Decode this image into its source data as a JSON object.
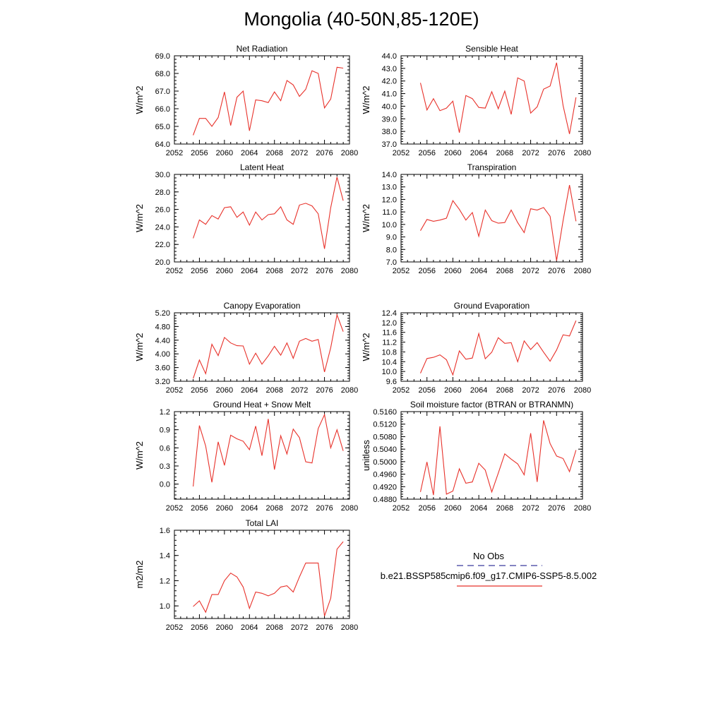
{
  "page": {
    "title": "Mongolia (40-50N,85-120E)"
  },
  "legend": {
    "obs_label": "No Obs",
    "obs_color": "#3b3b9e",
    "model_label": "b.e21.BSSP585cmip6.f09_g17.CMIP6-SSP5-8.5.002",
    "model_color": "#e8322b"
  },
  "chart_data": [
    {
      "type": "line",
      "title": "Net Radiation",
      "ylabel": "W/m^2",
      "xlim": [
        2052,
        2080
      ],
      "ylim": [
        64.0,
        69.0
      ],
      "xticks": [
        "2052",
        "2056",
        "2060",
        "2064",
        "2068",
        "2072",
        "2076",
        "2080"
      ],
      "yticks": [
        "64.0",
        "65.0",
        "66.0",
        "67.0",
        "68.0",
        "69.0"
      ],
      "x": [
        2055,
        2056,
        2057,
        2058,
        2059,
        2060,
        2061,
        2062,
        2063,
        2064,
        2065,
        2066,
        2067,
        2068,
        2069,
        2070,
        2071,
        2072,
        2073,
        2074,
        2075,
        2076,
        2077,
        2078,
        2079
      ],
      "series": [
        {
          "values": [
            64.5,
            65.45,
            65.45,
            65.0,
            65.5,
            66.95,
            65.05,
            66.65,
            67.0,
            64.75,
            66.5,
            66.45,
            66.35,
            66.95,
            66.45,
            67.6,
            67.35,
            66.7,
            67.1,
            68.15,
            68.0,
            66.05,
            66.55,
            68.35,
            68.3
          ]
        }
      ]
    },
    {
      "type": "line",
      "title": "Sensible Heat",
      "ylabel": "W/m^2",
      "xlim": [
        2052,
        2080
      ],
      "ylim": [
        37.0,
        44.0
      ],
      "xticks": [
        "2052",
        "2056",
        "2060",
        "2064",
        "2068",
        "2072",
        "2076",
        "2080"
      ],
      "yticks": [
        "37.0",
        "38.0",
        "39.0",
        "40.0",
        "41.0",
        "42.0",
        "43.0",
        "44.0"
      ],
      "x": [
        2055,
        2056,
        2057,
        2058,
        2059,
        2060,
        2061,
        2062,
        2063,
        2064,
        2065,
        2066,
        2067,
        2068,
        2069,
        2070,
        2071,
        2072,
        2073,
        2074,
        2075,
        2076,
        2077,
        2078,
        2079
      ],
      "series": [
        {
          "values": [
            41.85,
            39.7,
            40.6,
            39.65,
            39.85,
            40.4,
            37.9,
            40.85,
            40.6,
            39.9,
            39.85,
            41.15,
            39.8,
            41.2,
            39.35,
            42.25,
            42.0,
            39.45,
            39.95,
            41.35,
            41.6,
            43.45,
            40.05,
            37.8,
            40.7
          ]
        }
      ]
    },
    {
      "type": "line",
      "title": "Latent Heat",
      "ylabel": "W/m^2",
      "xlim": [
        2052,
        2080
      ],
      "ylim": [
        20.0,
        30.0
      ],
      "xticks": [
        "2052",
        "2056",
        "2060",
        "2064",
        "2068",
        "2072",
        "2076",
        "2080"
      ],
      "yticks": [
        "20.0",
        "22.0",
        "24.0",
        "26.0",
        "28.0",
        "30.0"
      ],
      "x": [
        2055,
        2056,
        2057,
        2058,
        2059,
        2060,
        2061,
        2062,
        2063,
        2064,
        2065,
        2066,
        2067,
        2068,
        2069,
        2070,
        2071,
        2072,
        2073,
        2074,
        2075,
        2076,
        2077,
        2078,
        2079
      ],
      "series": [
        {
          "values": [
            22.7,
            24.8,
            24.3,
            25.3,
            24.9,
            26.2,
            26.3,
            25.1,
            25.7,
            24.2,
            25.7,
            24.8,
            25.4,
            25.5,
            26.3,
            24.8,
            24.3,
            26.5,
            26.7,
            26.4,
            25.5,
            21.5,
            26.2,
            29.7,
            27.0
          ]
        }
      ]
    },
    {
      "type": "line",
      "title": "Transpiration",
      "ylabel": "W/m^2",
      "xlim": [
        2052,
        2080
      ],
      "ylim": [
        7.0,
        14.0
      ],
      "xticks": [
        "2052",
        "2056",
        "2060",
        "2064",
        "2068",
        "2072",
        "2076",
        "2080"
      ],
      "yticks": [
        "7.0",
        "8.0",
        "9.0",
        "10.0",
        "11.0",
        "12.0",
        "13.0",
        "14.0"
      ],
      "x": [
        2055,
        2056,
        2057,
        2058,
        2059,
        2060,
        2061,
        2062,
        2063,
        2064,
        2065,
        2066,
        2067,
        2068,
        2069,
        2070,
        2071,
        2072,
        2073,
        2074,
        2075,
        2076,
        2077,
        2078,
        2079
      ],
      "series": [
        {
          "values": [
            9.5,
            10.4,
            10.25,
            10.35,
            10.5,
            11.9,
            11.2,
            10.35,
            10.95,
            9.05,
            11.15,
            10.3,
            10.1,
            10.15,
            11.15,
            10.15,
            9.35,
            11.25,
            11.15,
            11.35,
            10.65,
            7.1,
            10.3,
            13.15,
            10.25
          ]
        }
      ]
    },
    {
      "type": "line",
      "title": "Canopy Evaporation",
      "ylabel": "W/m^2",
      "xlim": [
        2052,
        2080
      ],
      "ylim": [
        3.2,
        5.2
      ],
      "xticks": [
        "2052",
        "2056",
        "2060",
        "2064",
        "2068",
        "2072",
        "2076",
        "2080"
      ],
      "yticks": [
        "3.20",
        "3.60",
        "4.00",
        "4.40",
        "4.80",
        "5.20"
      ],
      "x": [
        2055,
        2056,
        2057,
        2058,
        2059,
        2060,
        2061,
        2062,
        2063,
        2064,
        2065,
        2066,
        2067,
        2068,
        2069,
        2070,
        2071,
        2072,
        2073,
        2074,
        2075,
        2076,
        2077,
        2078,
        2079
      ],
      "series": [
        {
          "values": [
            3.28,
            3.82,
            3.42,
            4.28,
            3.95,
            4.48,
            4.32,
            4.24,
            4.23,
            3.7,
            4.02,
            3.7,
            3.94,
            4.22,
            3.96,
            4.32,
            3.87,
            4.37,
            4.45,
            4.37,
            4.42,
            3.47,
            4.18,
            5.14,
            4.65
          ]
        }
      ]
    },
    {
      "type": "line",
      "title": "Ground Evaporation",
      "ylabel": "W/m^2",
      "xlim": [
        2052,
        2080
      ],
      "ylim": [
        9.6,
        12.4
      ],
      "xticks": [
        "2052",
        "2056",
        "2060",
        "2064",
        "2068",
        "2072",
        "2076",
        "2080"
      ],
      "yticks": [
        "9.6",
        "10.0",
        "10.4",
        "10.8",
        "11.2",
        "11.6",
        "12.0",
        "12.4"
      ],
      "x": [
        2055,
        2056,
        2057,
        2058,
        2059,
        2060,
        2061,
        2062,
        2063,
        2064,
        2065,
        2066,
        2067,
        2068,
        2069,
        2070,
        2071,
        2072,
        2073,
        2074,
        2075,
        2076,
        2077,
        2078,
        2079
      ],
      "series": [
        {
          "values": [
            9.93,
            10.53,
            10.58,
            10.68,
            10.48,
            9.86,
            10.84,
            10.5,
            10.55,
            11.55,
            10.52,
            10.79,
            11.38,
            11.15,
            11.18,
            10.4,
            11.25,
            10.9,
            11.18,
            10.79,
            10.42,
            10.88,
            11.5,
            11.45,
            12.08
          ]
        }
      ]
    },
    {
      "type": "line",
      "title": "Ground Heat + Snow Melt",
      "ylabel": "W/m^2",
      "xlim": [
        2052,
        2080
      ],
      "ylim": [
        -0.25,
        1.2
      ],
      "xticks": [
        "2052",
        "2056",
        "2060",
        "2064",
        "2068",
        "2072",
        "2076",
        "2080"
      ],
      "yticks": [
        "0.0",
        "0.3",
        "0.6",
        "0.9",
        "1.2"
      ],
      "ytickvals": [
        0.0,
        0.3,
        0.6,
        0.9,
        1.2
      ],
      "x": [
        2055,
        2056,
        2057,
        2058,
        2059,
        2060,
        2061,
        2062,
        2063,
        2064,
        2065,
        2066,
        2067,
        2068,
        2069,
        2070,
        2071,
        2072,
        2073,
        2074,
        2075,
        2076,
        2077,
        2078,
        2079
      ],
      "series": [
        {
          "values": [
            -0.04,
            0.97,
            0.63,
            0.03,
            0.7,
            0.31,
            0.81,
            0.75,
            0.71,
            0.57,
            0.96,
            0.47,
            1.08,
            0.24,
            0.8,
            0.5,
            0.91,
            0.77,
            0.37,
            0.35,
            0.92,
            1.15,
            0.6,
            0.9,
            0.55
          ]
        }
      ]
    },
    {
      "type": "line",
      "title": "Soil moisture factor (BTRAN or BTRANMN)",
      "ylabel": "unitless",
      "xlim": [
        2052,
        2080
      ],
      "ylim": [
        0.488,
        0.516
      ],
      "xticks": [
        "2052",
        "2056",
        "2060",
        "2064",
        "2068",
        "2072",
        "2076",
        "2080"
      ],
      "yticks": [
        "0.4880",
        "0.4920",
        "0.4960",
        "0.5000",
        "0.5040",
        "0.5080",
        "0.5120",
        "0.5160"
      ],
      "x": [
        2055,
        2056,
        2057,
        2058,
        2059,
        2060,
        2061,
        2062,
        2063,
        2064,
        2065,
        2066,
        2067,
        2068,
        2069,
        2070,
        2071,
        2072,
        2073,
        2074,
        2075,
        2076,
        2077,
        2078,
        2079
      ],
      "series": [
        {
          "values": [
            0.4903,
            0.4999,
            0.4893,
            0.5113,
            0.4896,
            0.4906,
            0.4977,
            0.4931,
            0.4935,
            0.4995,
            0.4973,
            0.4903,
            0.4963,
            0.5025,
            0.5008,
            0.4993,
            0.4958,
            0.5091,
            0.4935,
            0.5132,
            0.5058,
            0.5018,
            0.501,
            0.4968,
            0.5037
          ]
        }
      ]
    },
    {
      "type": "line",
      "title": "Total LAI",
      "ylabel": "m2/m2",
      "xlim": [
        2052,
        2080
      ],
      "ylim": [
        0.9,
        1.6
      ],
      "xticks": [
        "2052",
        "2056",
        "2060",
        "2064",
        "2068",
        "2072",
        "2076",
        "2080"
      ],
      "yticks": [
        "1.0",
        "1.2",
        "1.4",
        "1.6"
      ],
      "ytickvals": [
        1.0,
        1.2,
        1.4,
        1.6
      ],
      "x": [
        2055,
        2056,
        2057,
        2058,
        2059,
        2060,
        2061,
        2062,
        2063,
        2064,
        2065,
        2066,
        2067,
        2068,
        2069,
        2070,
        2071,
        2072,
        2073,
        2074,
        2075,
        2076,
        2077,
        2078,
        2079
      ],
      "series": [
        {
          "values": [
            0.995,
            1.04,
            0.95,
            1.09,
            1.09,
            1.2,
            1.26,
            1.23,
            1.15,
            0.98,
            1.11,
            1.1,
            1.08,
            1.1,
            1.15,
            1.16,
            1.11,
            1.23,
            1.34,
            1.34,
            1.34,
            0.92,
            1.06,
            1.45,
            1.51
          ]
        }
      ]
    }
  ]
}
